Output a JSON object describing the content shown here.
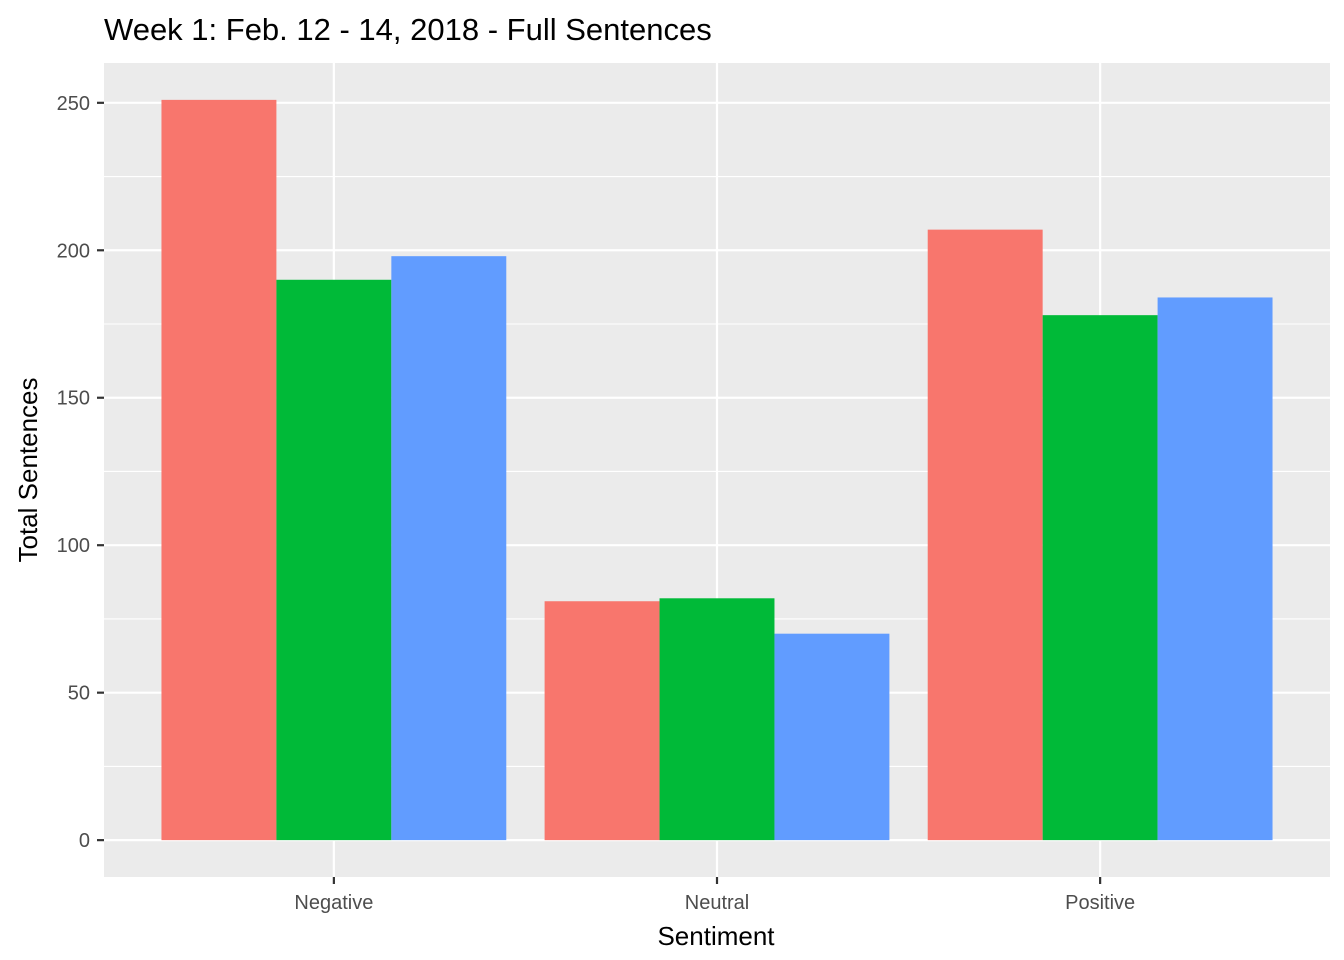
{
  "chart_data": {
    "type": "bar",
    "title": "Week 1: Feb. 12 - 14, 2018 - Full Sentences",
    "xlabel": "Sentiment",
    "ylabel": "Total Sentences",
    "categories": [
      "Negative",
      "Neutral",
      "Positive"
    ],
    "series": [
      {
        "values": [
          251,
          81,
          207
        ],
        "color": "#F8766D"
      },
      {
        "values": [
          190,
          82,
          178
        ],
        "color": "#00BA38"
      },
      {
        "values": [
          198,
          70,
          184
        ],
        "color": "#619CFF"
      }
    ],
    "yticks": [
      0,
      50,
      100,
      150,
      200,
      250
    ],
    "ylim": [
      -12.5,
      263.5
    ],
    "grid": true,
    "legend": "none",
    "panel_background": "#EBEBEB",
    "grid_color": "#FFFFFF"
  }
}
